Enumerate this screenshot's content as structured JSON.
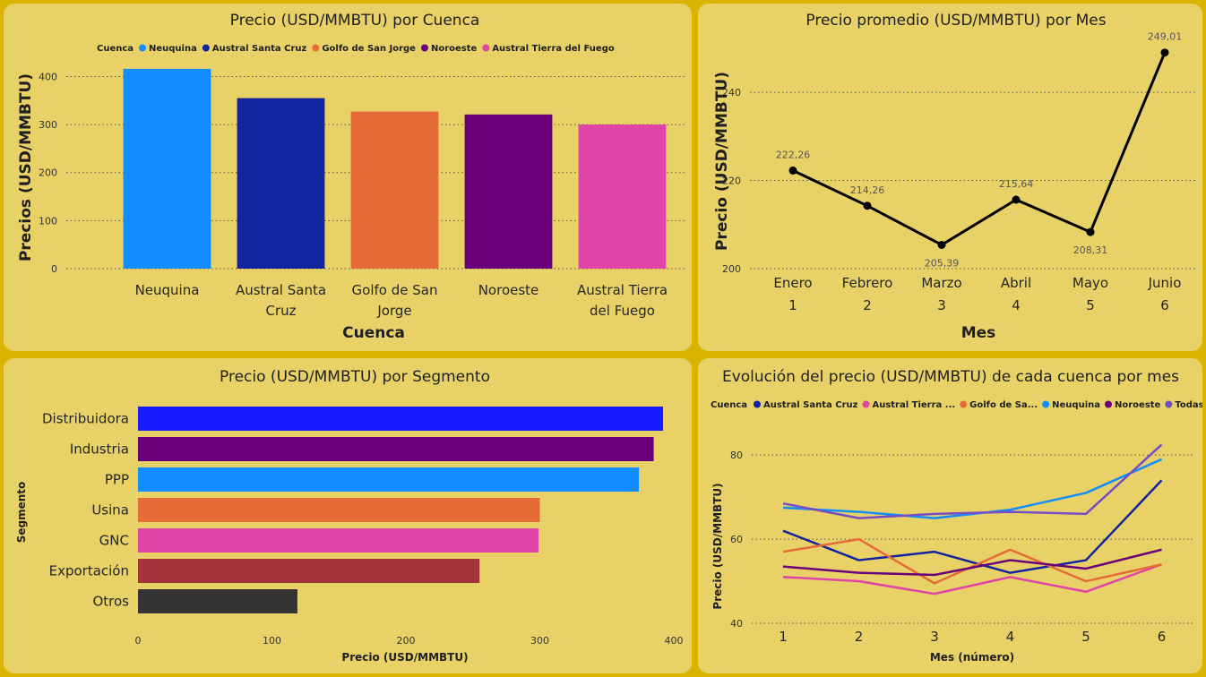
{
  "chart_data": [
    {
      "id": "cuenca",
      "type": "bar",
      "title": "Precio (USD/MMBTU) por Cuenca",
      "legend_title": "Cuenca",
      "legend_position": "top-left",
      "categories": [
        "Neuquina",
        "Austral Santa Cruz",
        "Golfo de San Jorge",
        "Noroeste",
        "Austral Tierra del Fuego"
      ],
      "category_lines": [
        [
          "Neuquina"
        ],
        [
          "Austral Santa",
          "Cruz"
        ],
        [
          "Golfo de San",
          "Jorge"
        ],
        [
          "Noroeste"
        ],
        [
          "Austral Tierra",
          "del Fuego"
        ]
      ],
      "values": [
        416,
        355,
        327,
        321,
        300
      ],
      "colors": [
        "#118dff",
        "#12239e",
        "#e66c37",
        "#6b007b",
        "#e044a7"
      ],
      "xlabel": "Cuenca",
      "ylabel": "Precios (USD/MMBTU)",
      "ylim": [
        0,
        440
      ],
      "yticks": [
        0,
        100,
        200,
        300,
        400
      ],
      "grid": true
    },
    {
      "id": "mes",
      "type": "line",
      "title": "Precio promedio (USD/MMBTU) por Mes",
      "categories": [
        "Enero",
        "Febrero",
        "Marzo",
        "Abril",
        "Mayo",
        "Junio"
      ],
      "subcategories": [
        "1",
        "2",
        "3",
        "4",
        "5",
        "6"
      ],
      "values": [
        222.26,
        214.26,
        205.39,
        215.64,
        208.31,
        249.01
      ],
      "data_labels": [
        "222,26",
        "214,26",
        "205,39",
        "215,64",
        "208,31",
        "249,01"
      ],
      "xlabel": "Mes",
      "ylabel": "Precio (USD/MMBTU)",
      "ylim": [
        200,
        252
      ],
      "yticks": [
        200,
        220,
        240
      ],
      "color": "#000000",
      "grid": true
    },
    {
      "id": "segmento",
      "type": "bar",
      "orientation": "horizontal",
      "title": "Precio (USD/MMBTU) por Segmento",
      "categories": [
        "Distribuidora",
        "Industria",
        "PPP",
        "Usina",
        "GNC",
        "Exportación",
        "Otros"
      ],
      "values": [
        392,
        385,
        374,
        300,
        299,
        255,
        119
      ],
      "colors": [
        "#1a1aff",
        "#6b007b",
        "#118dff",
        "#e66c37",
        "#e044a7",
        "#a4343a",
        "#333333"
      ],
      "xlabel": "Precio (USD/MMBTU)",
      "ylabel": "Segmento",
      "xlim": [
        0,
        400
      ],
      "xticks": [
        0,
        100,
        200,
        300,
        400
      ]
    },
    {
      "id": "evolucion",
      "type": "line",
      "title": "Evolución del precio (USD/MMBTU) de cada cuenca por mes",
      "legend_title": "Cuenca",
      "legend_position": "top-left",
      "x": [
        1,
        2,
        3,
        4,
        5,
        6
      ],
      "series": [
        {
          "name": "Austral Santa Cruz",
          "legend": "Austral Santa Cruz",
          "color": "#12239e",
          "values": [
            62,
            55,
            57,
            52,
            55,
            74
          ]
        },
        {
          "name": "Austral Tierra del Fuego",
          "legend": "Austral Tierra ...",
          "color": "#e044a7",
          "values": [
            51,
            50,
            47,
            51,
            47.5,
            54
          ]
        },
        {
          "name": "Golfo de San Jorge",
          "legend": "Golfo de Sa...",
          "color": "#e66c37",
          "values": [
            57,
            60,
            49.5,
            57.5,
            50,
            54
          ]
        },
        {
          "name": "Neuquina",
          "legend": "Neuquina",
          "color": "#118dff",
          "values": [
            67.5,
            66.5,
            65,
            67,
            71,
            79
          ]
        },
        {
          "name": "Noroeste",
          "legend": "Noroeste",
          "color": "#6b007b",
          "values": [
            53.5,
            52,
            51.5,
            55,
            53,
            57.5
          ]
        },
        {
          "name": "Todas",
          "legend": "Todas",
          "color": "#744ec2",
          "values": [
            68.5,
            65,
            66,
            66.5,
            66,
            82.5
          ]
        }
      ],
      "xlabel": "Mes (número)",
      "ylabel": "Precio (USD/MMBTU)",
      "ylim": [
        40,
        86
      ],
      "yticks": [
        40,
        60,
        80
      ],
      "grid": true
    }
  ]
}
